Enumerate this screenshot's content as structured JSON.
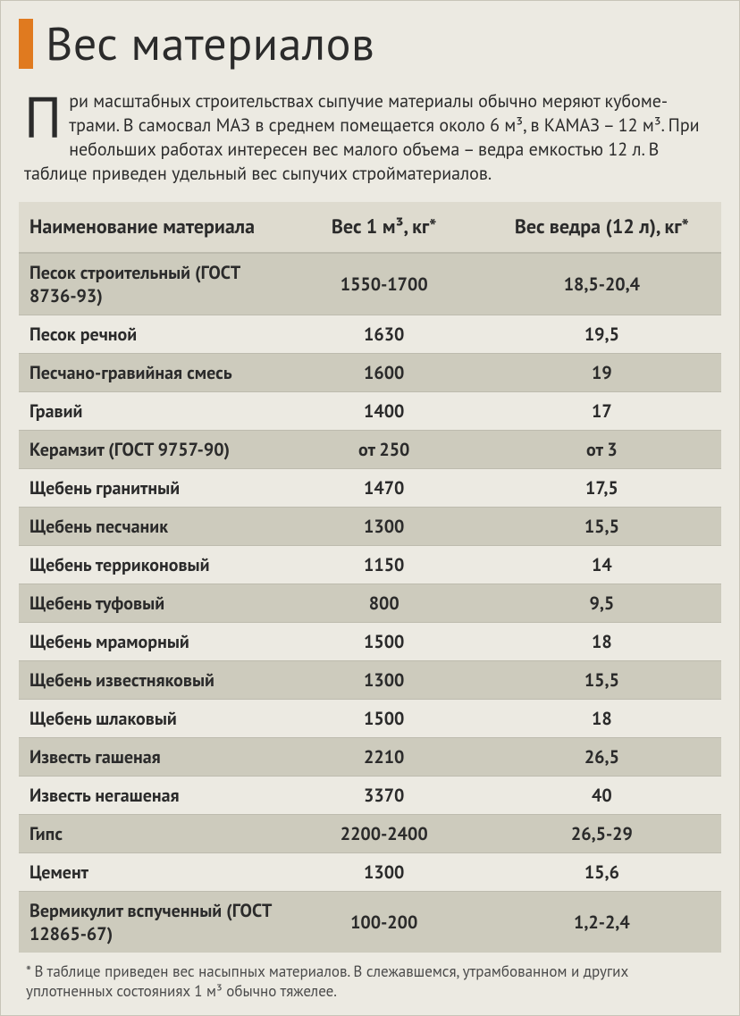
{
  "title": "Вес материалов",
  "intro": {
    "dropcap": "П",
    "text_html": "ри масштабных строительствах сыпучие материалы обычно меряют кубоме-трами. В самосвал МАЗ в среднем помещается около 6 м³, в КАМАЗ – 12 м³. При небольших работах интересен вес малого объема – ведра емкостью 12 л. В таблице приведен удельный вес сыпучих стройматериалов."
  },
  "table": {
    "columns": [
      "Наименование материала",
      "Вес 1 м³, кг*",
      "Вес ведра (12 л), кг*"
    ],
    "rows": [
      [
        "Песок строительный (ГОСТ 8736-93)",
        "1550-1700",
        "18,5-20,4"
      ],
      [
        "Песок речной",
        "1630",
        "19,5"
      ],
      [
        "Песчано-гравийная смесь",
        "1600",
        "19"
      ],
      [
        "Гравий",
        "1400",
        "17"
      ],
      [
        "Керамзит (ГОСТ 9757-90)",
        "от 250",
        "от 3"
      ],
      [
        "Щебень гранитный",
        "1470",
        "17,5"
      ],
      [
        "Щебень песчаник",
        "1300",
        "15,5"
      ],
      [
        "Щебень терриконовый",
        "1150",
        "14"
      ],
      [
        "Щебень туфовый",
        "800",
        "9,5"
      ],
      [
        "Щебень мраморный",
        "1500",
        "18"
      ],
      [
        "Щебень известняковый",
        "1300",
        "15,5"
      ],
      [
        "Щебень шлаковый",
        "1500",
        "18"
      ],
      [
        "Известь гашеная",
        "2210",
        "26,5"
      ],
      [
        "Известь негашеная",
        "3370",
        "40"
      ],
      [
        "Гипс",
        "2200-2400",
        "26,5-29"
      ],
      [
        "Цемент",
        "1300",
        "15,6"
      ],
      [
        "Вермикулит вспученный (ГОСТ 12865-67)",
        "100-200",
        "1,2-2,4"
      ]
    ]
  },
  "footnote": "* В таблице приведен вес насыпных материалов. В слежавшемся, утрамбованном и других уплотненных состояниях 1 м³ обычно тяжелее.",
  "colors": {
    "accent": "#e07a1f",
    "page_bg": "#eceae2",
    "row_odd": "#cdcbbd",
    "row_even": "#eceae2",
    "border": "#bdbbae",
    "header_bg": "#dedbcf",
    "text": "#2b2b2b"
  }
}
